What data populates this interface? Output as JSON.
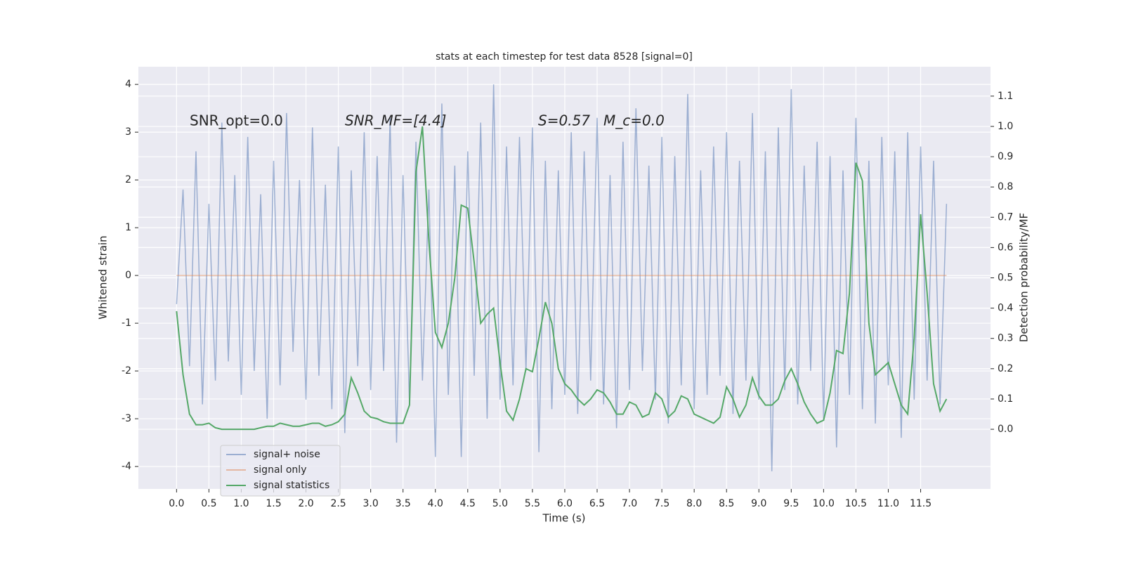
{
  "chart_data": {
    "type": "line",
    "title": "stats at each timestep for test data 8528 [signal=0]",
    "xlabel": "Time (s)",
    "ylabel": "Whitened strain",
    "y2label": "Detection probability/MF",
    "annotations": [
      "SNR_opt=0.0",
      "SNR_MF=[4.4]",
      "S=0.57",
      "M_c=0.0"
    ],
    "xlim": [
      -0.59,
      12.58
    ],
    "ylim": [
      -4.47,
      4.37
    ],
    "y2lim": [
      -0.197,
      1.197
    ],
    "xticks": [
      {
        "value": 0,
        "label": "0.0"
      },
      0.5,
      {
        "value": 1,
        "label": "1.0"
      },
      1.5,
      {
        "value": 2,
        "label": "2.0"
      },
      2.5,
      {
        "value": 3,
        "label": "3.0"
      },
      3.5,
      {
        "value": 4,
        "label": "4.0"
      },
      4.5,
      {
        "value": 5,
        "label": "5.0"
      },
      5.5,
      {
        "value": 6,
        "label": "6.0"
      },
      6.5,
      {
        "value": 7,
        "label": "7.0"
      },
      7.5,
      {
        "value": 8,
        "label": "8.0"
      },
      8.5,
      {
        "value": 9,
        "label": "9.0"
      },
      9.5,
      {
        "value": 10,
        "label": "10.0"
      },
      10.5,
      {
        "value": 11,
        "label": "11.0"
      },
      11.5
    ],
    "yticks": [
      -4,
      -3,
      -2,
      -1,
      0,
      1,
      2,
      3,
      4
    ],
    "y2ticks": [
      {
        "value": 0,
        "label": "0.0"
      },
      0.1,
      0.2,
      0.3,
      0.4,
      0.5,
      0.6,
      0.7,
      0.8,
      0.9,
      {
        "value": 1,
        "label": "1.0"
      },
      1.1
    ],
    "grid": true,
    "legend": "lower left",
    "series": [
      {
        "name": "signal+ noise",
        "color": "#4c72b0",
        "alpha": 0.5,
        "x": [
          0,
          0.1,
          0.2,
          0.3,
          0.4,
          0.5,
          0.6,
          0.7,
          0.8,
          0.9,
          1,
          1.1,
          1.2,
          1.3,
          1.4,
          1.5,
          1.6,
          1.7,
          1.8,
          1.9,
          2,
          2.1,
          2.2,
          2.3,
          2.4,
          2.5,
          2.6,
          2.7,
          2.8,
          2.9,
          3,
          3.1,
          3.2,
          3.3,
          3.4,
          3.5,
          3.6,
          3.7,
          3.8,
          3.9,
          4,
          4.1,
          4.2,
          4.3,
          4.4,
          4.5,
          4.6,
          4.7,
          4.8,
          4.9,
          5,
          5.1,
          5.2,
          5.3,
          5.4,
          5.5,
          5.6,
          5.7,
          5.8,
          5.9,
          6,
          6.1,
          6.2,
          6.3,
          6.4,
          6.5,
          6.6,
          6.7,
          6.8,
          6.9,
          7,
          7.1,
          7.2,
          7.3,
          7.4,
          7.5,
          7.6,
          7.7,
          7.8,
          7.9,
          8,
          8.1,
          8.2,
          8.3,
          8.4,
          8.5,
          8.6,
          8.7,
          8.8,
          8.9,
          9,
          9.1,
          9.2,
          9.3,
          9.4,
          9.5,
          9.6,
          9.7,
          9.8,
          9.9,
          10,
          10.1,
          10.2,
          10.3,
          10.4,
          10.5,
          10.6,
          10.7,
          10.8,
          10.9,
          11,
          11.1,
          11.2,
          11.3,
          11.4,
          11.5,
          11.6,
          11.7,
          11.8,
          11.9
        ],
        "values": [
          -0.6,
          1.8,
          -1.9,
          2.6,
          -2.7,
          1.5,
          -2.2,
          3.2,
          -1.8,
          2.1,
          -2.5,
          2.9,
          -2.0,
          1.7,
          -3.0,
          2.4,
          -2.3,
          3.4,
          -1.6,
          2.0,
          -2.6,
          3.1,
          -2.1,
          1.9,
          -2.8,
          2.7,
          -3.3,
          2.2,
          -1.9,
          3.0,
          -2.4,
          2.5,
          -2.0,
          3.3,
          -3.5,
          2.1,
          -2.7,
          2.8,
          -2.2,
          1.8,
          -3.8,
          3.6,
          -2.5,
          2.3,
          -3.8,
          2.6,
          -2.1,
          3.2,
          -3.0,
          4.0,
          -2.6,
          2.7,
          -2.3,
          2.9,
          -2.0,
          3.1,
          -3.7,
          2.4,
          -2.8,
          2.2,
          -2.5,
          3.0,
          -2.9,
          2.6,
          -2.2,
          3.3,
          -2.7,
          2.1,
          -3.2,
          2.8,
          -2.4,
          3.5,
          -2.0,
          2.3,
          -2.6,
          2.9,
          -3.1,
          2.5,
          -2.3,
          3.8,
          -2.8,
          2.2,
          -2.5,
          2.7,
          -2.1,
          3.0,
          -2.9,
          2.4,
          -2.2,
          3.4,
          -2.6,
          2.6,
          -4.1,
          3.1,
          -2.4,
          3.9,
          -2.7,
          2.3,
          -2.0,
          2.8,
          -3.0,
          2.5,
          -3.6,
          2.2,
          -2.5,
          3.3,
          -2.8,
          2.4,
          -3.1,
          2.9,
          -2.3,
          2.6,
          -3.4,
          3.0,
          -2.6,
          2.7,
          -2.2,
          2.4,
          -2.7,
          1.5
        ]
      },
      {
        "name": "signal only",
        "color": "#dd8452",
        "alpha": 0.5,
        "x": [
          0,
          11.9
        ],
        "values": [
          0,
          0
        ]
      },
      {
        "name": "signal statistics",
        "color": "#55a868",
        "alpha": 1,
        "axis": "y2",
        "x": [
          0,
          0.1,
          0.2,
          0.3,
          0.4,
          0.5,
          0.6,
          0.7,
          0.8,
          0.9,
          1,
          1.1,
          1.2,
          1.3,
          1.4,
          1.5,
          1.6,
          1.7,
          1.8,
          1.9,
          2,
          2.1,
          2.2,
          2.3,
          2.4,
          2.5,
          2.6,
          2.7,
          2.8,
          2.9,
          3,
          3.1,
          3.2,
          3.3,
          3.4,
          3.5,
          3.6,
          3.7,
          3.8,
          3.9,
          4,
          4.1,
          4.2,
          4.3,
          4.4,
          4.5,
          4.6,
          4.7,
          4.8,
          4.9,
          5,
          5.1,
          5.2,
          5.3,
          5.4,
          5.5,
          5.6,
          5.7,
          5.8,
          5.9,
          6,
          6.1,
          6.2,
          6.3,
          6.4,
          6.5,
          6.6,
          6.7,
          6.8,
          6.9,
          7,
          7.1,
          7.2,
          7.3,
          7.4,
          7.5,
          7.6,
          7.7,
          7.8,
          7.9,
          8,
          8.1,
          8.2,
          8.3,
          8.4,
          8.5,
          8.6,
          8.7,
          8.8,
          8.9,
          9,
          9.1,
          9.2,
          9.3,
          9.4,
          9.5,
          9.6,
          9.7,
          9.8,
          9.9,
          10,
          10.1,
          10.2,
          10.3,
          10.4,
          10.5,
          10.6,
          10.7,
          10.8,
          10.9,
          11,
          11.1,
          11.2,
          11.3,
          11.4,
          11.5,
          11.6,
          11.7,
          11.8,
          11.9
        ],
        "values": [
          0.39,
          0.18,
          0.05,
          0.015,
          0.015,
          0.02,
          0.005,
          0.0,
          0.0,
          0.0,
          0.0,
          0.0,
          0.0,
          0.005,
          0.01,
          0.01,
          0.02,
          0.015,
          0.01,
          0.01,
          0.015,
          0.02,
          0.02,
          0.01,
          0.015,
          0.025,
          0.05,
          0.17,
          0.12,
          0.06,
          0.04,
          0.035,
          0.025,
          0.02,
          0.02,
          0.02,
          0.08,
          0.85,
          1.0,
          0.62,
          0.32,
          0.27,
          0.35,
          0.5,
          0.74,
          0.73,
          0.55,
          0.35,
          0.38,
          0.4,
          0.22,
          0.06,
          0.03,
          0.1,
          0.2,
          0.19,
          0.3,
          0.42,
          0.35,
          0.2,
          0.15,
          0.13,
          0.1,
          0.08,
          0.1,
          0.13,
          0.12,
          0.09,
          0.05,
          0.05,
          0.09,
          0.08,
          0.04,
          0.05,
          0.12,
          0.1,
          0.04,
          0.06,
          0.11,
          0.1,
          0.05,
          0.04,
          0.03,
          0.02,
          0.04,
          0.14,
          0.1,
          0.04,
          0.08,
          0.17,
          0.11,
          0.08,
          0.08,
          0.1,
          0.16,
          0.2,
          0.15,
          0.09,
          0.05,
          0.02,
          0.03,
          0.12,
          0.26,
          0.25,
          0.45,
          0.88,
          0.82,
          0.35,
          0.18,
          0.2,
          0.22,
          0.15,
          0.08,
          0.05,
          0.3,
          0.71,
          0.45,
          0.15,
          0.06,
          0.1
        ]
      }
    ]
  }
}
